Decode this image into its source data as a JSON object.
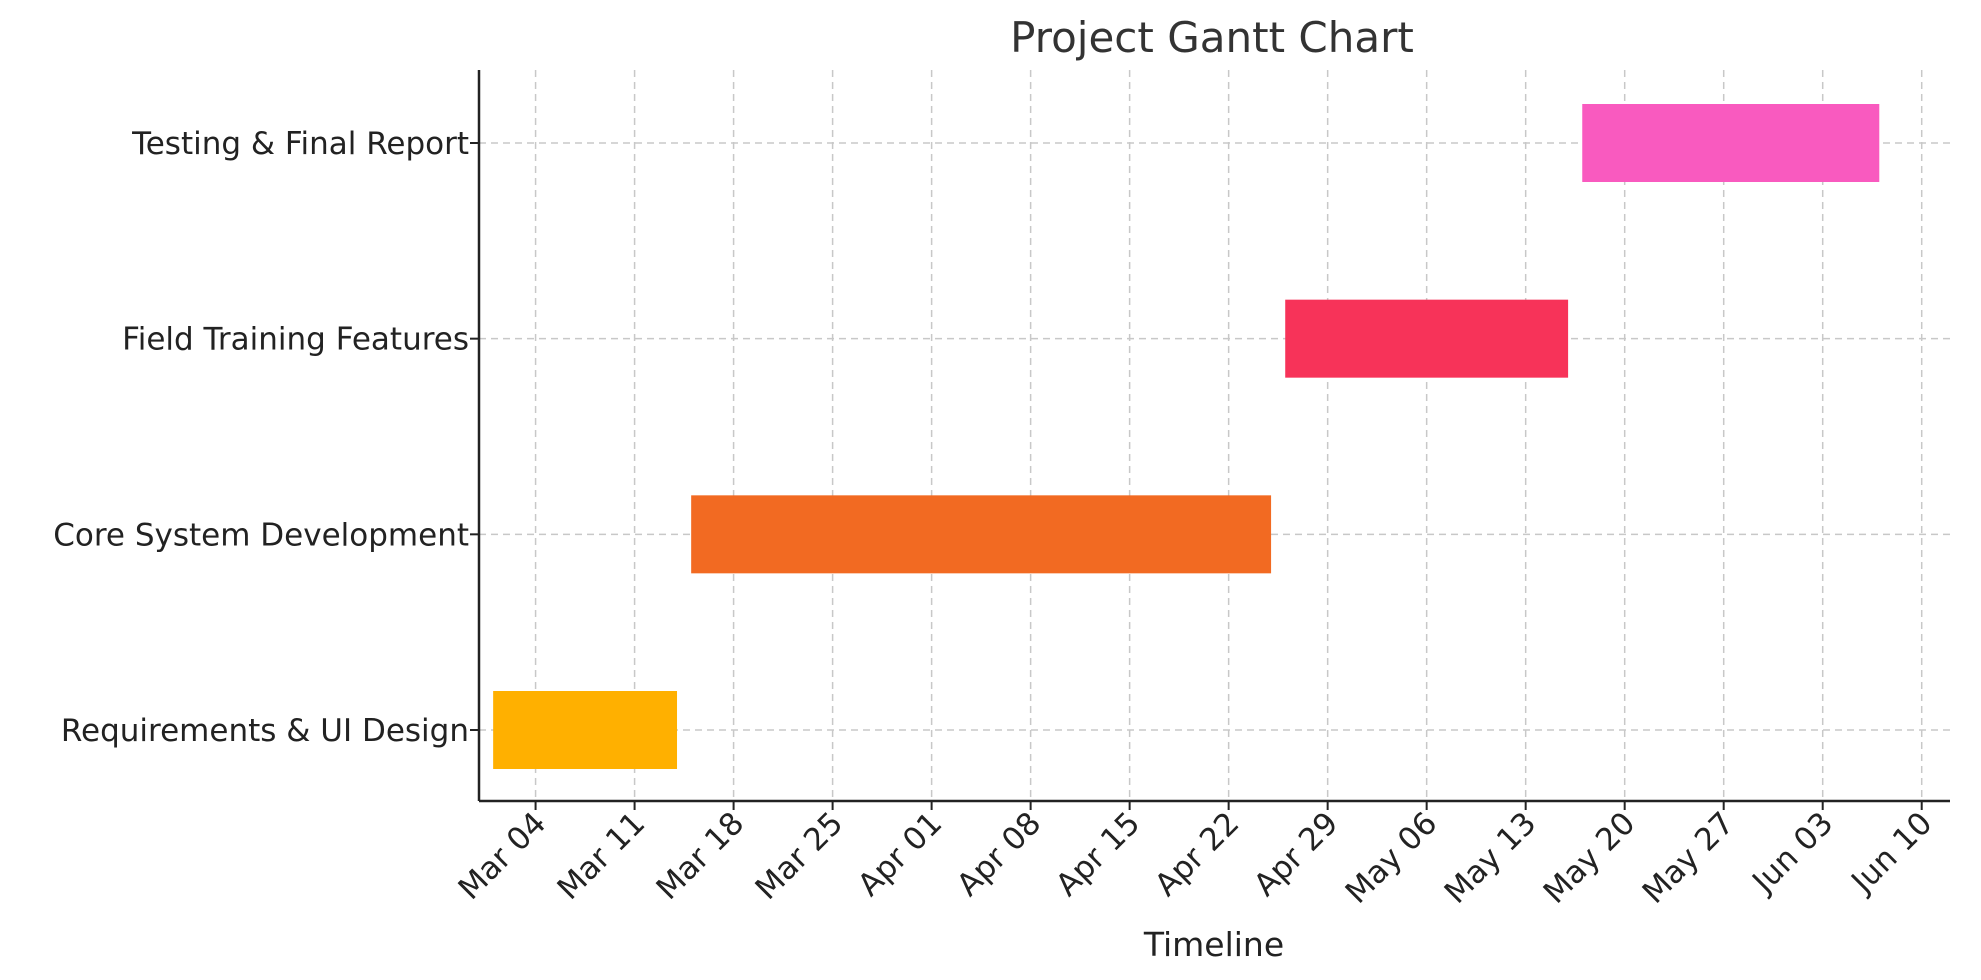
{
  "chart_data": {
    "type": "gantt",
    "title": "Project Gantt Chart",
    "xlabel": "Timeline",
    "ylabel": "",
    "x_range": [
      "2024-02-29",
      "2024-06-12"
    ],
    "x_ticks": [
      {
        "date": "2024-03-04",
        "label": "Mar 04"
      },
      {
        "date": "2024-03-11",
        "label": "Mar 11"
      },
      {
        "date": "2024-03-18",
        "label": "Mar 18"
      },
      {
        "date": "2024-03-25",
        "label": "Mar 25"
      },
      {
        "date": "2024-04-01",
        "label": "Apr 01"
      },
      {
        "date": "2024-04-08",
        "label": "Apr 08"
      },
      {
        "date": "2024-04-15",
        "label": "Apr 15"
      },
      {
        "date": "2024-04-22",
        "label": "Apr 22"
      },
      {
        "date": "2024-04-29",
        "label": "Apr 29"
      },
      {
        "date": "2024-05-06",
        "label": "May 06"
      },
      {
        "date": "2024-05-13",
        "label": "May 13"
      },
      {
        "date": "2024-05-20",
        "label": "May 20"
      },
      {
        "date": "2024-05-27",
        "label": "May 27"
      },
      {
        "date": "2024-06-03",
        "label": "Jun 03"
      },
      {
        "date": "2024-06-10",
        "label": "Jun 10"
      }
    ],
    "grid": true,
    "tasks": [
      {
        "name": "Requirements & UI Design",
        "start": "2024-03-01",
        "end": "2024-03-14",
        "color": "#FFB000"
      },
      {
        "name": "Core System Development",
        "start": "2024-03-15",
        "end": "2024-04-25",
        "color": "#F26A22"
      },
      {
        "name": "Field Training Features",
        "start": "2024-04-26",
        "end": "2024-05-16",
        "color": "#F73359"
      },
      {
        "name": "Testing & Final Report",
        "start": "2024-05-17",
        "end": "2024-06-07",
        "color": "#F95ABF"
      }
    ]
  }
}
